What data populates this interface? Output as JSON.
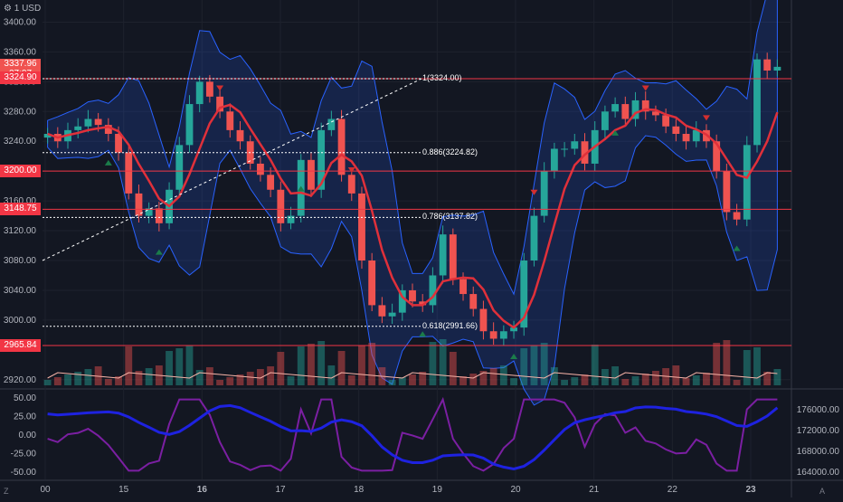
{
  "header": {
    "currency_label": "1 USD",
    "currency_icon": "gear-icon"
  },
  "price_axis": {
    "ticks": [
      "3400.00",
      "3360.00",
      "3320.00",
      "3280.00",
      "3240.00",
      "3200.00",
      "3160.00",
      "3120.00",
      "3080.00",
      "3040.00",
      "3000.00",
      "2920.00"
    ]
  },
  "oscillator_axis": {
    "ticks": [
      "50.00",
      "25.00",
      "0.00",
      "-25.00",
      "-50.00"
    ]
  },
  "volume_axis": {
    "ticks": [
      "176000.00",
      "172000.00",
      "168000.00",
      "164000.00"
    ]
  },
  "time_axis": {
    "ticks": [
      "00",
      "15",
      "16",
      "17",
      "18",
      "19",
      "20",
      "21",
      "22",
      "23"
    ]
  },
  "price_tags": [
    {
      "label": "3337.96",
      "sub": "27:07",
      "color": "#f05350"
    },
    {
      "label": "3324.90",
      "color": "#f23645"
    },
    {
      "label": "3200.00",
      "color": "#f23645"
    },
    {
      "label": "3148.75",
      "color": "#f23645"
    },
    {
      "label": "2965.84",
      "color": "#f23645"
    }
  ],
  "fib_levels": [
    {
      "label": "1(3324.00)",
      "value": 3324.0
    },
    {
      "label": "0.886(3224.82)",
      "value": 3224.82
    },
    {
      "label": "0.786(3137.82)",
      "value": 3137.82
    },
    {
      "label": "0.618(2991.66)",
      "value": 2991.66
    }
  ],
  "chart_data": {
    "type": "candlestick",
    "price_ylim": [
      2910,
      3420
    ],
    "horizontal_lines": [
      3324.0,
      3200.0,
      3148.75,
      2965.84
    ],
    "colors": {
      "up": "#26a69a",
      "down": "#ef5350",
      "ma": "#e0303a",
      "band": "#2962ff",
      "osc_blue": "#1e22e0",
      "osc_purple": "#7b1fa2"
    },
    "close_path": [
      3250,
      3240,
      3255,
      3260,
      3270,
      3262,
      3250,
      3225,
      3170,
      3140,
      3150,
      3130,
      3175,
      3235,
      3290,
      3320,
      3300,
      3280,
      3255,
      3240,
      3210,
      3195,
      3175,
      3130,
      3140,
      3215,
      3175,
      3255,
      3270,
      3195,
      3170,
      3080,
      3020,
      3005,
      3010,
      3040,
      3025,
      3020,
      3060,
      3115,
      3055,
      3035,
      3015,
      2985,
      2975,
      2985,
      2990,
      3080,
      3140,
      3200,
      3230,
      3230,
      3240,
      3210,
      3255,
      3280,
      3290,
      3270,
      3295,
      3280,
      3275,
      3260,
      3250,
      3240,
      3255,
      3240,
      3200,
      3145,
      3135,
      3235,
      3350,
      3335,
      3340
    ]
  },
  "corners": {
    "left": "Z",
    "right": "A"
  }
}
